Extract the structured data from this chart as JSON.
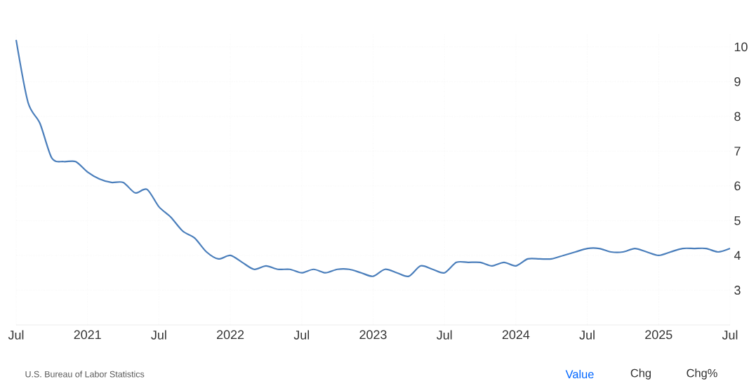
{
  "chart_data": {
    "type": "line",
    "x": [
      "2020-07",
      "2020-08",
      "2020-09",
      "2020-10",
      "2020-11",
      "2020-12",
      "2021-01",
      "2021-02",
      "2021-03",
      "2021-04",
      "2021-05",
      "2021-06",
      "2021-07",
      "2021-08",
      "2021-09",
      "2021-10",
      "2021-11",
      "2021-12",
      "2022-01",
      "2022-02",
      "2022-03",
      "2022-04",
      "2022-05",
      "2022-06",
      "2022-07",
      "2022-08",
      "2022-09",
      "2022-10",
      "2022-11",
      "2022-12",
      "2023-01",
      "2023-02",
      "2023-03",
      "2023-04",
      "2023-05",
      "2023-06",
      "2023-07",
      "2023-08",
      "2023-09",
      "2023-10",
      "2023-11",
      "2023-12",
      "2024-01",
      "2024-02",
      "2024-03",
      "2024-04",
      "2024-05",
      "2024-06",
      "2024-07",
      "2024-08",
      "2024-09",
      "2024-10",
      "2024-11",
      "2024-12",
      "2025-01",
      "2025-02",
      "2025-03",
      "2025-04",
      "2025-05",
      "2025-06",
      "2025-07"
    ],
    "series": [
      {
        "color": "#4a7ebb",
        "values": [
          10.2,
          8.4,
          7.8,
          6.8,
          6.7,
          6.7,
          6.4,
          6.2,
          6.1,
          6.1,
          5.8,
          5.9,
          5.4,
          5.1,
          4.7,
          4.5,
          4.1,
          3.9,
          4.0,
          3.8,
          3.6,
          3.7,
          3.6,
          3.6,
          3.5,
          3.6,
          3.5,
          3.6,
          3.6,
          3.5,
          3.4,
          3.6,
          3.5,
          3.4,
          3.7,
          3.6,
          3.5,
          3.8,
          3.8,
          3.8,
          3.7,
          3.8,
          3.7,
          3.9,
          3.9,
          3.9,
          4.0,
          4.1,
          4.2,
          4.2,
          4.1,
          4.1,
          4.2,
          4.1,
          4.0,
          4.1,
          4.2,
          4.2,
          4.2,
          4.1,
          4.2
        ]
      }
    ],
    "xlim": [
      "2020-07",
      "2025-07"
    ],
    "xticks": [
      {
        "value": "2020-07",
        "label": "Jul"
      },
      {
        "value": "2021-01",
        "label": "2021"
      },
      {
        "value": "2021-07",
        "label": "Jul"
      },
      {
        "value": "2022-01",
        "label": "2022"
      },
      {
        "value": "2022-07",
        "label": "Jul"
      },
      {
        "value": "2023-01",
        "label": "2023"
      },
      {
        "value": "2023-07",
        "label": "Jul"
      },
      {
        "value": "2024-01",
        "label": "2024"
      },
      {
        "value": "2024-07",
        "label": "Jul"
      },
      {
        "value": "2025-01",
        "label": "2025"
      },
      {
        "value": "2025-07",
        "label": "Jul"
      }
    ],
    "ylim": [
      2,
      10.4
    ],
    "yticks": [
      3,
      4,
      5,
      6,
      7,
      8,
      9,
      10
    ],
    "grid": true,
    "line_style": "solid",
    "marker": "none",
    "annotations": [
      "U.S. Bureau of Labor Statistics",
      "Value",
      "Chg",
      "Chg%"
    ]
  }
}
